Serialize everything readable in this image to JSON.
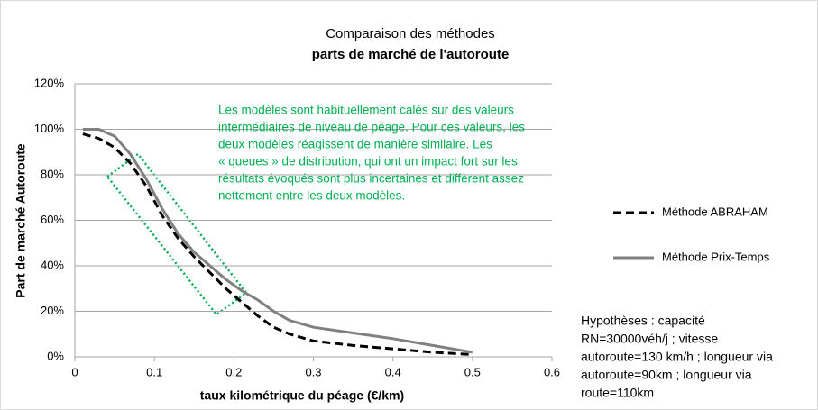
{
  "chart_data": {
    "type": "line",
    "title": "Comparaison des méthodes",
    "subtitle": "parts de marché de l'autoroute",
    "xlabel": "taux kilométrique du péage (€/km)",
    "ylabel": "Part de marché Autoroute",
    "x": [
      0.01,
      0.03,
      0.05,
      0.07,
      0.09,
      0.11,
      0.13,
      0.15,
      0.17,
      0.19,
      0.21,
      0.23,
      0.25,
      0.27,
      0.3,
      0.35,
      0.4,
      0.45,
      0.5
    ],
    "series": [
      {
        "name": "Méthode ABRAHAM",
        "color": "#000000",
        "dash": true,
        "values": [
          98,
          96,
          92,
          85,
          75,
          62,
          52,
          44,
          37,
          30,
          24,
          18,
          13,
          10,
          7,
          5,
          3.5,
          2,
          1
        ]
      },
      {
        "name": "Méthode Prix-Temps",
        "color": "#808080",
        "dash": false,
        "values": [
          100,
          100,
          97,
          89,
          78,
          65,
          54,
          46,
          40,
          34,
          29,
          25,
          20,
          16,
          13,
          10.5,
          8,
          5,
          2
        ]
      }
    ],
    "xlim": [
      0,
      0.6
    ],
    "xticks": [
      0,
      0.1,
      0.2,
      0.3,
      0.4,
      0.5,
      0.6
    ],
    "ylim": [
      0,
      120
    ],
    "yticks": [
      {
        "value": 0,
        "label": "0%"
      },
      {
        "value": 20,
        "label": "20%"
      },
      {
        "value": 40,
        "label": "40%"
      },
      {
        "value": 60,
        "label": "60%"
      },
      {
        "value": 80,
        "label": "80%"
      },
      {
        "value": 100,
        "label": "100%"
      },
      {
        "value": 120,
        "label": "120%"
      }
    ],
    "grid": true,
    "legend": "right",
    "annotation": [
      "Les modèles sont habituellement calés sur des valeurs",
      "intermédiaires de niveau de péage. Pour ces valeurs, les",
      "deux modèles réagissent de manière similaire.  Les",
      "« queues » de distribution, qui ont un impact fort sur les",
      "résultats évoqués sont plus incertaines et diffèrent assez",
      "nettement entre les deux modèles."
    ],
    "hypotheses": [
      "Hypothèses : capacité",
      "RN=30000véh/j ; vitesse",
      "autoroute=130 km/h ; longueur via",
      "autoroute=90km ; longueur via",
      "route=110km"
    ]
  }
}
